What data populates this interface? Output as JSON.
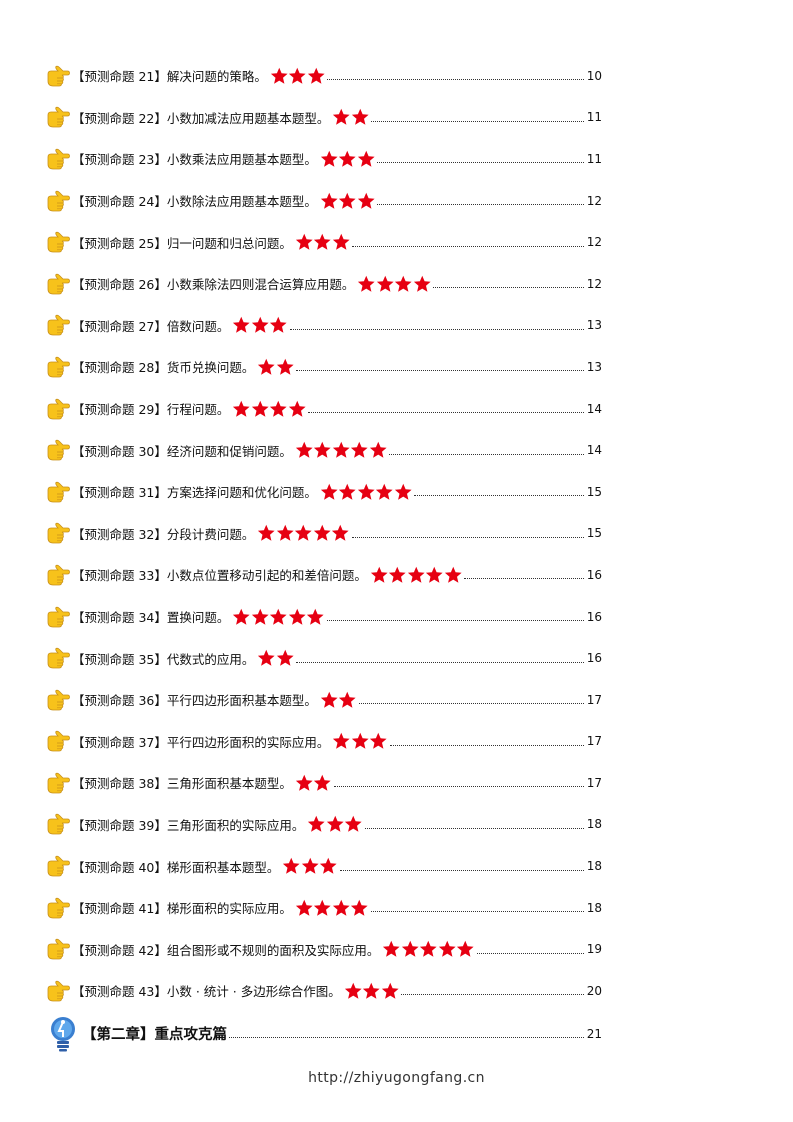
{
  "entries": [
    {
      "label": "【预测命题 21】解决问题的策略。",
      "stars": 3,
      "page": "10"
    },
    {
      "label": "【预测命题 22】小数加减法应用题基本题型。",
      "stars": 2,
      "page": "11"
    },
    {
      "label": "【预测命题 23】小数乘法应用题基本题型。",
      "stars": 3,
      "page": "11"
    },
    {
      "label": "【预测命题 24】小数除法应用题基本题型。",
      "stars": 3,
      "page": "12"
    },
    {
      "label": "【预测命题 25】归一问题和归总问题。",
      "stars": 3,
      "page": "12"
    },
    {
      "label": "【预测命题 26】小数乘除法四则混合运算应用题。",
      "stars": 4,
      "page": "12"
    },
    {
      "label": "【预测命题 27】倍数问题。",
      "stars": 3,
      "page": "13"
    },
    {
      "label": "【预测命题 28】货币兑换问题。",
      "stars": 2,
      "page": "13"
    },
    {
      "label": "【预测命题 29】行程问题。",
      "stars": 4,
      "page": "14"
    },
    {
      "label": "【预测命题 30】经济问题和促销问题。",
      "stars": 5,
      "page": "14"
    },
    {
      "label": "【预测命题 31】方案选择问题和优化问题。",
      "stars": 5,
      "page": "15"
    },
    {
      "label": "【预测命题 32】分段计费问题。",
      "stars": 5,
      "page": "15"
    },
    {
      "label": "【预测命题 33】小数点位置移动引起的和差倍问题。",
      "stars": 5,
      "page": "16"
    },
    {
      "label": "【预测命题 34】置换问题。",
      "stars": 5,
      "page": "16"
    },
    {
      "label": "【预测命题 35】代数式的应用。",
      "stars": 2,
      "page": "16"
    },
    {
      "label": "【预测命题 36】平行四边形面积基本题型。",
      "stars": 2,
      "page": "17"
    },
    {
      "label": "【预测命题 37】平行四边形面积的实际应用。",
      "stars": 3,
      "page": "17"
    },
    {
      "label": "【预测命题 38】三角形面积基本题型。",
      "stars": 2,
      "page": "17"
    },
    {
      "label": "【预测命题 39】三角形面积的实际应用。",
      "stars": 3,
      "page": "18"
    },
    {
      "label": "【预测命题 40】梯形面积基本题型。",
      "stars": 3,
      "page": "18"
    },
    {
      "label": "【预测命题 41】梯形面积的实际应用。",
      "stars": 4,
      "page": "18"
    },
    {
      "label": "【预测命题 42】组合图形或不规则的面积及实际应用。",
      "stars": 5,
      "page": "19"
    },
    {
      "label": "【预测命题 43】小数 · 统计 · 多边形综合作图。",
      "stars": 3,
      "page": "20"
    }
  ],
  "chapter": {
    "label": "【第二章】重点攻克篇",
    "page": "21"
  },
  "footer": {
    "url": "http://zhiyugongfang.cn"
  },
  "colors": {
    "star": "#e60012",
    "hand": "#f7c21b",
    "bulb": "#3a7fd0"
  },
  "icons": {
    "entry": "pointing-hand-icon",
    "star": "star-icon",
    "chapter": "lightbulb-icon"
  }
}
